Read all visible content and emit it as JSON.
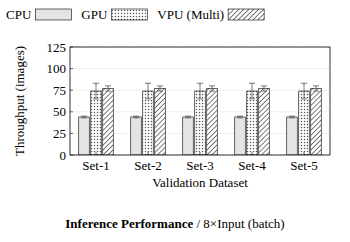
{
  "chart_data": {
    "type": "bar",
    "title": "Inference Performance",
    "subtitle": "/ 8×Input (batch)",
    "x_label": "Validation Dataset",
    "y_label": "Throughput (images)",
    "categories": [
      "Set-1",
      "Set-2",
      "Set-3",
      "Set-4",
      "Set-5"
    ],
    "series": [
      {
        "name": "CPU",
        "color": "#e4e4e4",
        "values": [
          44,
          44,
          44,
          44,
          44
        ],
        "errors": [
          1,
          1,
          1,
          1,
          1
        ]
      },
      {
        "name": "GPU",
        "color": "#555555",
        "values": [
          74,
          74,
          74,
          74,
          74
        ],
        "errors": [
          9,
          9,
          9,
          9,
          9
        ]
      },
      {
        "name": "VPU (Multi)",
        "color": "#444444",
        "values": [
          77,
          77,
          77,
          77,
          77
        ],
        "errors": [
          3,
          3,
          3,
          3,
          3
        ]
      }
    ],
    "ylim": [
      0,
      125
    ],
    "yticks": [
      0,
      25,
      50,
      75,
      100,
      125
    ],
    "grid": true,
    "legend": "top"
  }
}
